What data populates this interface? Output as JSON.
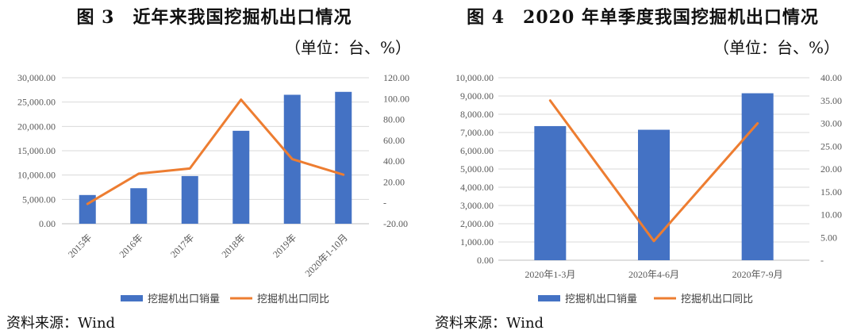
{
  "chart_data": [
    {
      "type": "bar",
      "title": "图 3　近年来我国挖掘机出口情况",
      "unit_note": "（单位：台、%）",
      "categories": [
        "2015年",
        "2016年",
        "2017年",
        "2018年",
        "2019年",
        "2020年1-10月"
      ],
      "series": [
        {
          "name": "挖掘机出口销量",
          "type": "bar",
          "axis": "left",
          "color": "#4472C4",
          "values": [
            5900,
            7300,
            9800,
            19100,
            26500,
            27100
          ]
        },
        {
          "name": "挖掘机出口同比",
          "type": "line",
          "axis": "right",
          "color": "#ED7D31",
          "values": [
            -1,
            28,
            33,
            99,
            42,
            27
          ]
        }
      ],
      "ylim": [
        0,
        30000
      ],
      "y_ticks": [
        "30,000.00",
        "25,000.00",
        "20,000.00",
        "15,000.00",
        "10,000.00",
        "5,000.00",
        "0.00"
      ],
      "y2lim": [
        -20,
        120
      ],
      "y2_ticks": [
        "120.00",
        "100.00",
        "80.00",
        "60.00",
        "40.00",
        "20.00",
        "-",
        "-20.00"
      ],
      "xtick_rotated": true,
      "grid": true,
      "legend": "bottom",
      "source": "资料来源：Wind"
    },
    {
      "type": "bar",
      "title": "图 4　2020 年单季度我国挖掘机出口情况",
      "unit_note": "（单位：台、%）",
      "categories": [
        "2020年1-3月",
        "2020年4-6月",
        "2020年7-9月"
      ],
      "series": [
        {
          "name": "挖掘机出口销量",
          "type": "bar",
          "axis": "left",
          "color": "#4472C4",
          "values": [
            7350,
            7150,
            9150
          ]
        },
        {
          "name": "挖掘机出口同比",
          "type": "line",
          "axis": "right",
          "color": "#ED7D31",
          "values": [
            35,
            4.2,
            30
          ]
        }
      ],
      "ylim": [
        0,
        10000
      ],
      "y_ticks": [
        "10,000.00",
        "9,000.00",
        "8,000.00",
        "7,000.00",
        "6,000.00",
        "5,000.00",
        "4,000.00",
        "3,000.00",
        "2,000.00",
        "1,000.00",
        "0.00"
      ],
      "y2lim": [
        0,
        40
      ],
      "y2_ticks": [
        "40.00",
        "35.00",
        "30.00",
        "25.00",
        "20.00",
        "15.00",
        "10.00",
        "5.00",
        "-"
      ],
      "xtick_rotated": false,
      "grid": true,
      "legend": "bottom",
      "source": "资料来源：Wind"
    }
  ]
}
